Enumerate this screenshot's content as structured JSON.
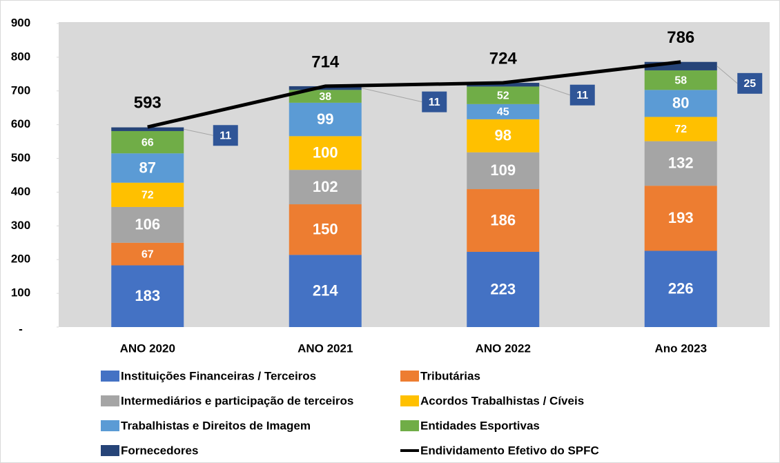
{
  "chart_data": {
    "type": "bar",
    "stacked": true,
    "categories": [
      "ANO 2020",
      "ANO 2021",
      "ANO 2022",
      "Ano 2023"
    ],
    "series": [
      {
        "name": "Instituições Financeiras / Terceiros",
        "color": "#4472c4",
        "values": [
          183,
          214,
          223,
          226
        ]
      },
      {
        "name": "Tributárias",
        "color": "#ed7d31",
        "values": [
          67,
          150,
          186,
          193
        ]
      },
      {
        "name": "Intermediários e participação de terceiros",
        "color": "#a5a5a5",
        "values": [
          106,
          102,
          109,
          132
        ]
      },
      {
        "name": "Acordos Trabalhistas / Cíveis",
        "color": "#ffc000",
        "values": [
          72,
          100,
          98,
          72
        ]
      },
      {
        "name": "Trabalhistas e Direitos de Imagem",
        "color": "#5b9bd5",
        "values": [
          87,
          99,
          45,
          80
        ]
      },
      {
        "name": "Entidades Esportivas",
        "color": "#70ad47",
        "values": [
          66,
          38,
          52,
          58
        ]
      },
      {
        "name": "Fornecedores",
        "color": "#264478",
        "values": [
          11,
          11,
          11,
          25
        ]
      },
      {
        "name": "Endividamento Efetivo do SPFC",
        "type": "line",
        "color": "#000000",
        "values": [
          593,
          714,
          724,
          786
        ]
      }
    ],
    "ylim": [
      0,
      900
    ],
    "yticks": [
      {
        "value": 0,
        "label": "-"
      },
      100,
      200,
      300,
      400,
      500,
      600,
      700,
      800,
      900
    ],
    "legend": "bottom"
  }
}
